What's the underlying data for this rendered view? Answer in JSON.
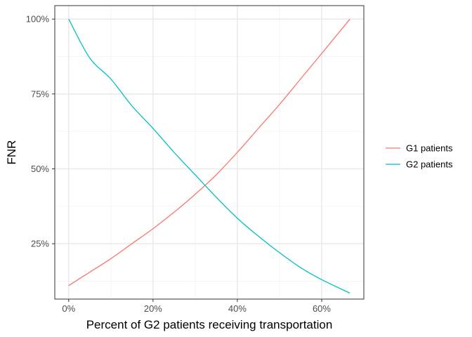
{
  "chart_data": {
    "type": "line",
    "title": "",
    "xlabel": "Percent of G2 patients receiving transportation",
    "ylabel": "FNR",
    "xlim": [
      -0.033,
      0.7
    ],
    "ylim": [
      0.065,
      1.045
    ],
    "x_ticks": [
      0,
      0.2,
      0.4,
      0.6
    ],
    "x_tick_labels": [
      "0%",
      "20%",
      "40%",
      "60%"
    ],
    "y_ticks": [
      0.25,
      0.5,
      0.75,
      1.0
    ],
    "y_tick_labels": [
      "25%",
      "50%",
      "75%",
      "100%"
    ],
    "grid": true,
    "legend_position": "right",
    "x": [
      0,
      0.05,
      0.1,
      0.15,
      0.2,
      0.25,
      0.3,
      0.35,
      0.4,
      0.45,
      0.5,
      0.55,
      0.6,
      0.667
    ],
    "series": [
      {
        "name": "G1 patients",
        "color": "#F8766D",
        "values": [
          0.11,
          0.155,
          0.2,
          0.25,
          0.3,
          0.355,
          0.415,
          0.48,
          0.555,
          0.635,
          0.715,
          0.8,
          0.885,
          1.0
        ]
      },
      {
        "name": "G2 patients",
        "color": "#00BFC4",
        "values": [
          1.0,
          0.87,
          0.8,
          0.71,
          0.635,
          0.555,
          0.48,
          0.405,
          0.335,
          0.275,
          0.22,
          0.17,
          0.13,
          0.085
        ]
      }
    ]
  }
}
